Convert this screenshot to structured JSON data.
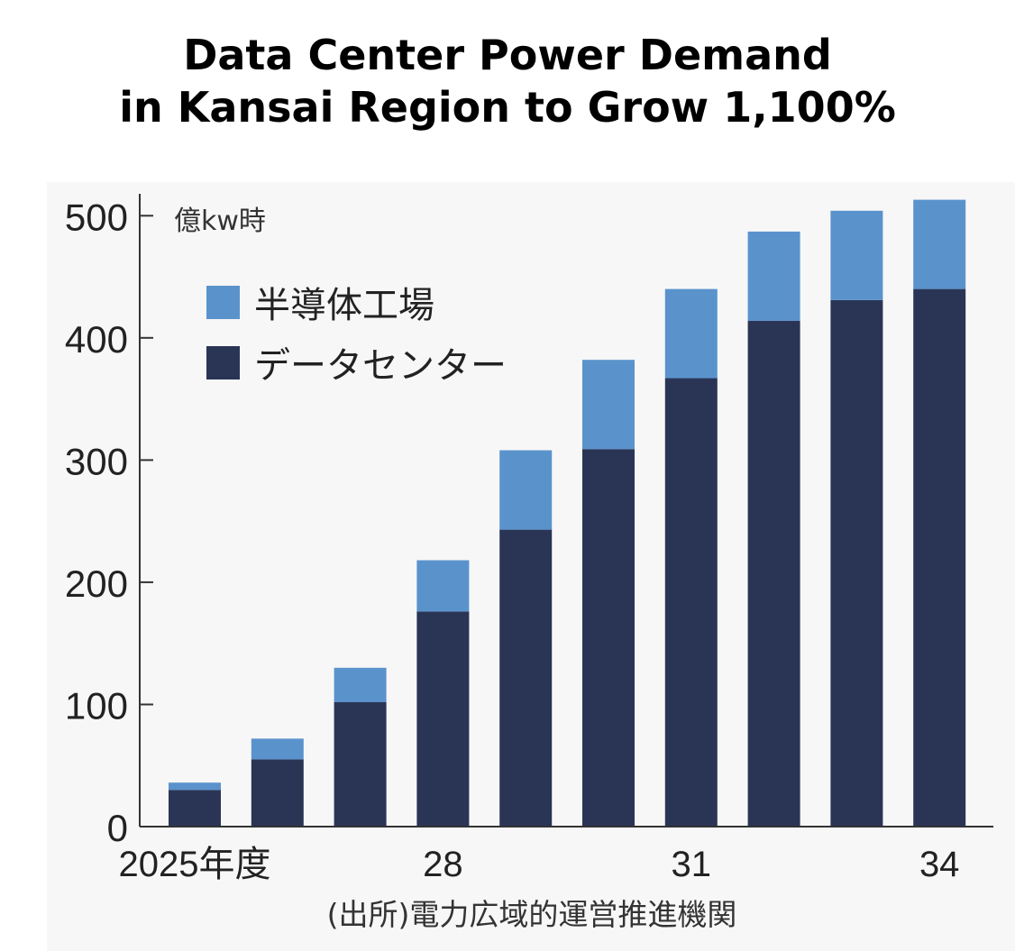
{
  "title": {
    "line1": "Data Center Power Demand",
    "line2": "in Kansai Region to Grow 1,100%"
  },
  "chart_data": {
    "type": "bar",
    "stacked": true,
    "categories": [
      "2025年度",
      "26",
      "27",
      "28",
      "29",
      "30",
      "31",
      "32",
      "33",
      "34"
    ],
    "x_tick_labels": [
      "2025年度",
      "28",
      "31",
      "34"
    ],
    "unit": "億kw時",
    "ylim": [
      0,
      520
    ],
    "y_ticks": [
      "0",
      "100",
      "200",
      "300",
      "400",
      "500"
    ],
    "grid": false,
    "legend_position": "top-left",
    "series": [
      {
        "name": "データセンター",
        "color": "#2a3556",
        "values": [
          30,
          55,
          102,
          176,
          243,
          309,
          367,
          414,
          431,
          440
        ]
      },
      {
        "name": "半導体工場",
        "color": "#5a93cc",
        "values": [
          6,
          17,
          28,
          42,
          65,
          73,
          73,
          73,
          73,
          73
        ]
      }
    ],
    "source": "(出所)電力広域的運営推進機関"
  }
}
